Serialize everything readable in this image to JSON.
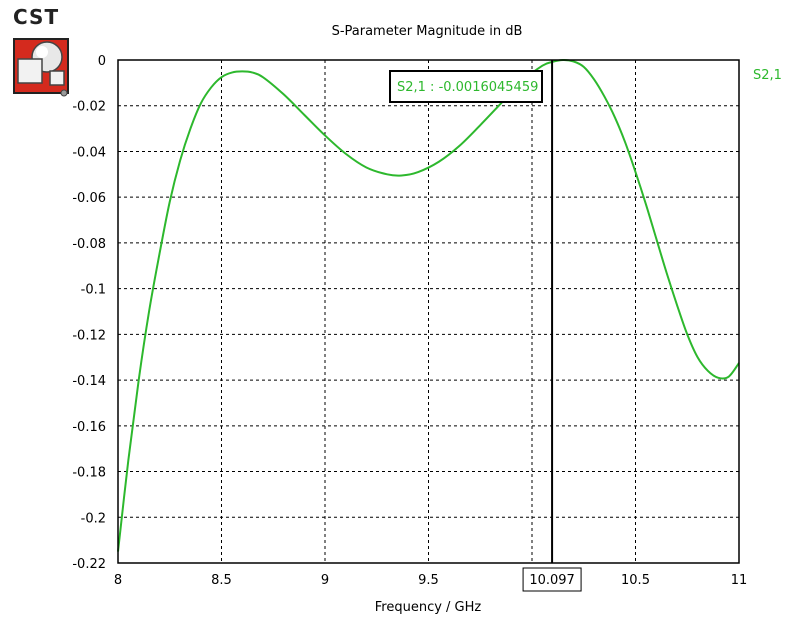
{
  "logo": {
    "text": "CST"
  },
  "chart_data": {
    "type": "line",
    "title": "S-Parameter Magnitude in dB",
    "xlabel": "Frequency / GHz",
    "ylabel": "",
    "xlim": [
      8,
      11
    ],
    "ylim": [
      -0.22,
      0
    ],
    "xticks": [
      8,
      8.5,
      9,
      9.5,
      10,
      10.5,
      11
    ],
    "yticks": [
      0,
      -0.02,
      -0.04,
      -0.06,
      -0.08,
      -0.1,
      -0.12,
      -0.14,
      -0.16,
      -0.18,
      -0.2,
      -0.22
    ],
    "grid": true,
    "legend_position": "top-right",
    "series": [
      {
        "name": "S2,1",
        "color": "#2db82d",
        "x": [
          8.0,
          8.05,
          8.1,
          8.15,
          8.2,
          8.25,
          8.3,
          8.35,
          8.4,
          8.45,
          8.5,
          8.55,
          8.6,
          8.65,
          8.7,
          8.8,
          8.9,
          9.0,
          9.1,
          9.2,
          9.3,
          9.37,
          9.45,
          9.55,
          9.65,
          9.75,
          9.85,
          9.95,
          10.05,
          10.1,
          10.15,
          10.2,
          10.25,
          10.3,
          10.35,
          10.4,
          10.45,
          10.5,
          10.55,
          10.6,
          10.65,
          10.7,
          10.75,
          10.8,
          10.85,
          10.9,
          10.95,
          11.0
        ],
        "values": [
          -0.215,
          -0.175,
          -0.14,
          -0.11,
          -0.085,
          -0.062,
          -0.044,
          -0.03,
          -0.019,
          -0.012,
          -0.0075,
          -0.0055,
          -0.005,
          -0.0055,
          -0.0075,
          -0.015,
          -0.024,
          -0.033,
          -0.041,
          -0.047,
          -0.05,
          -0.0505,
          -0.049,
          -0.0445,
          -0.0375,
          -0.0285,
          -0.019,
          -0.0095,
          -0.0025,
          -0.0008,
          0.0,
          -0.0006,
          -0.003,
          -0.0085,
          -0.016,
          -0.025,
          -0.036,
          -0.049,
          -0.063,
          -0.078,
          -0.093,
          -0.107,
          -0.12,
          -0.13,
          -0.136,
          -0.139,
          -0.1385,
          -0.1325
        ]
      }
    ],
    "marker": {
      "x": 10.097,
      "x_label": "10.097",
      "readout": "S2,1 : -0.0016045459"
    }
  }
}
